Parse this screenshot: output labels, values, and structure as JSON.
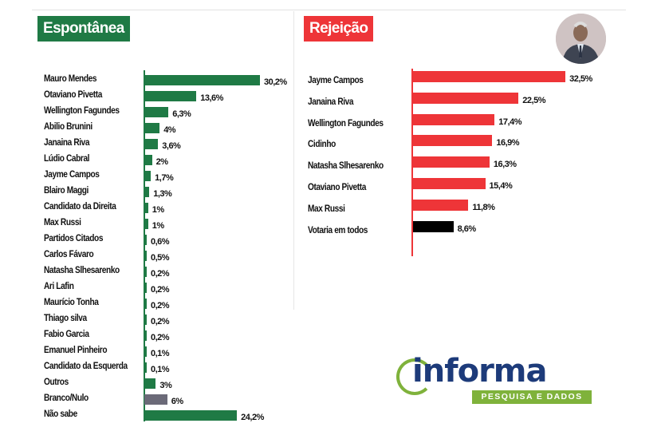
{
  "chart_data": [
    {
      "type": "bar",
      "orientation": "horizontal",
      "title": "Espontânea",
      "categories": [
        "Mauro Mendes",
        "Otaviano Pivetta",
        "Wellington Fagundes",
        "Abilio Brunini",
        "Janaina Riva",
        "Lúdio Cabral",
        "Jayme Campos",
        "Blairo Maggi",
        "Candidato da Direita",
        "Max Russi",
        "Partidos Citados",
        "Carlos Fávaro",
        "Natasha Slhesarenko",
        "Ari Lafin",
        "Maurício Tonha",
        "Thiago silva",
        "Fabio Garcia",
        "Emanuel Pinheiro",
        "Candidato da Esquerda",
        "Outros",
        "Branco/Nulo",
        "Não sabe"
      ],
      "values": [
        30.2,
        13.6,
        6.3,
        4,
        3.6,
        2,
        1.7,
        1.3,
        1,
        1,
        0.6,
        0.5,
        0.2,
        0.2,
        0.2,
        0.2,
        0.2,
        0.1,
        0.1,
        3,
        6,
        24.2
      ],
      "labels": [
        "30,2%",
        "13,6%",
        "6,3%",
        "4%",
        "3,6%",
        "2%",
        "1,7%",
        "1,3%",
        "1%",
        "1%",
        "0,6%",
        "0,5%",
        "0,2%",
        "0,2%",
        "0,2%",
        "0,2%",
        "0,2%",
        "0,1%",
        "0,1%",
        "3%",
        "6%",
        "24,2%"
      ],
      "colors": [
        "#1f7a45",
        "#1f7a45",
        "#1f7a45",
        "#1f7a45",
        "#1f7a45",
        "#1f7a45",
        "#1f7a45",
        "#1f7a45",
        "#1f7a45",
        "#1f7a45",
        "#1f7a45",
        "#1f7a45",
        "#1f7a45",
        "#1f7a45",
        "#1f7a45",
        "#1f7a45",
        "#1f7a45",
        "#1f7a45",
        "#1f7a45",
        "#1f7a45",
        "#6b6a78",
        "#1f7a45"
      ],
      "unit": "%"
    },
    {
      "type": "bar",
      "orientation": "horizontal",
      "title": "Rejeição",
      "categories": [
        "Jayme Campos",
        "Janaina Riva",
        "Wellington Fagundes",
        "Cidinho",
        "Natasha Slhesarenko",
        "Otaviano Pivetta",
        "Max Russi",
        "Votaria em todos"
      ],
      "values": [
        32.5,
        22.5,
        17.4,
        16.9,
        16.3,
        15.4,
        11.8,
        8.6
      ],
      "labels": [
        "32,5%",
        "22,5%",
        "17,4%",
        "16,9%",
        "16,3%",
        "15,4%",
        "11,8%",
        "8,6%"
      ],
      "colors": [
        "#ee3538",
        "#ee3538",
        "#ee3538",
        "#ee3538",
        "#ee3538",
        "#ee3538",
        "#ee3538",
        "#000000"
      ],
      "unit": "%"
    }
  ],
  "logo": {
    "word": "informa",
    "subtitle": "PESQUISA E DADOS"
  },
  "colors": {
    "green": "#1f7a45",
    "red": "#ee3538",
    "logo_blue": "#1d3b7a",
    "logo_green": "#7fb23b"
  }
}
